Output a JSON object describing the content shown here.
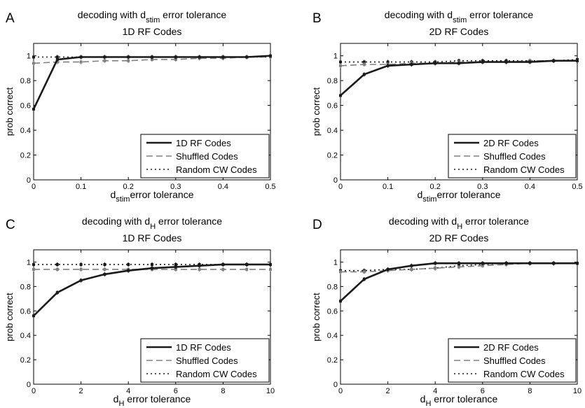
{
  "figure": {
    "legend_labels": [
      "Shuffled Codes",
      "Random CW Codes"
    ]
  },
  "chart_data": [
    {
      "type": "line",
      "panel_letter": "A",
      "title_prefix": "decoding with d",
      "title_sub": "stim",
      "title_suffix": " error tolerance",
      "subtitle": "1D RF Codes",
      "ylabel": "prob correct",
      "xlabel_prefix": "d",
      "xlabel_sub": "stim",
      "xlabel_suffix": "error tolerance",
      "xlim": [
        0,
        0.5
      ],
      "ylim": [
        0,
        1.1
      ],
      "xticks": [
        "0",
        "0.1",
        "0.2",
        "0.3",
        "0.4",
        "0.5"
      ],
      "xtick_values": [
        0,
        0.1,
        0.2,
        0.3,
        0.4,
        0.5
      ],
      "yticks": [
        "0",
        "0.2",
        "0.4",
        "0.6",
        "0.8",
        "1"
      ],
      "ytick_values": [
        0,
        0.2,
        0.4,
        0.6,
        0.8,
        1
      ],
      "legend_placement": "bottom-right",
      "x": [
        0,
        0.05,
        0.1,
        0.15,
        0.2,
        0.25,
        0.3,
        0.35,
        0.4,
        0.45,
        0.5
      ],
      "series": [
        {
          "name": "1D RF Codes",
          "style": "solid",
          "color": "#1a1a1a",
          "values": [
            0.57,
            0.97,
            0.99,
            0.99,
            0.99,
            0.99,
            0.99,
            0.99,
            0.99,
            0.99,
            1.0
          ]
        },
        {
          "name": "Shuffled Codes",
          "style": "dashed",
          "color": "#808080",
          "values": [
            0.94,
            0.95,
            0.95,
            0.96,
            0.96,
            0.97,
            0.97,
            0.98,
            0.98,
            0.99,
            0.99
          ]
        },
        {
          "name": "Random CW Codes",
          "style": "dotted",
          "color": "#1a1a1a",
          "values": [
            0.99,
            0.99,
            0.99,
            0.99,
            0.99,
            0.99,
            0.99,
            0.99,
            0.99,
            0.99,
            0.99
          ]
        }
      ]
    },
    {
      "type": "line",
      "panel_letter": "B",
      "title_prefix": "decoding with d",
      "title_sub": "stim",
      "title_suffix": " error tolerance",
      "subtitle": "2D RF Codes",
      "ylabel": "prob correct",
      "xlabel_prefix": "d",
      "xlabel_sub": "stim",
      "xlabel_suffix": "error tolerance",
      "xlim": [
        0,
        0.5
      ],
      "ylim": [
        0,
        1.1
      ],
      "xticks": [
        "0",
        "0.1",
        "0.2",
        "0.3",
        "0.4",
        "0.5"
      ],
      "xtick_values": [
        0,
        0.1,
        0.2,
        0.3,
        0.4,
        0.5
      ],
      "yticks": [
        "0",
        "0.2",
        "0.4",
        "0.6",
        "0.8",
        "1"
      ],
      "ytick_values": [
        0,
        0.2,
        0.4,
        0.6,
        0.8,
        1
      ],
      "legend_placement": "bottom-right",
      "x": [
        0,
        0.05,
        0.1,
        0.15,
        0.2,
        0.25,
        0.3,
        0.35,
        0.4,
        0.45,
        0.5
      ],
      "series": [
        {
          "name": "2D RF Codes",
          "style": "solid",
          "color": "#1a1a1a",
          "values": [
            0.68,
            0.85,
            0.92,
            0.93,
            0.94,
            0.94,
            0.95,
            0.95,
            0.95,
            0.96,
            0.96
          ]
        },
        {
          "name": "Shuffled Codes",
          "style": "dashed",
          "color": "#808080",
          "values": [
            0.92,
            0.93,
            0.93,
            0.94,
            0.94,
            0.95,
            0.95,
            0.95,
            0.96,
            0.96,
            0.96
          ]
        },
        {
          "name": "Random CW Codes",
          "style": "dotted",
          "color": "#1a1a1a",
          "values": [
            0.95,
            0.95,
            0.95,
            0.95,
            0.95,
            0.96,
            0.96,
            0.96,
            0.96,
            0.96,
            0.97
          ]
        }
      ]
    },
    {
      "type": "line",
      "panel_letter": "C",
      "title_prefix": "decoding with d",
      "title_sub": "H",
      "title_suffix": " error tolerance",
      "subtitle": "1D RF Codes",
      "ylabel": "prob correct",
      "xlabel_prefix": "d",
      "xlabel_sub": "H",
      "xlabel_suffix": " error tolerance",
      "xlim": [
        0,
        10
      ],
      "ylim": [
        0,
        1.1
      ],
      "xticks": [
        "0",
        "2",
        "4",
        "6",
        "8",
        "10"
      ],
      "xtick_values": [
        0,
        2,
        4,
        6,
        8,
        10
      ],
      "yticks": [
        "0",
        "0.2",
        "0.4",
        "0.6",
        "0.8",
        "1"
      ],
      "ytick_values": [
        0,
        0.2,
        0.4,
        0.6,
        0.8,
        1
      ],
      "legend_placement": "bottom-right",
      "x": [
        0,
        1,
        2,
        3,
        4,
        5,
        6,
        7,
        8,
        9,
        10
      ],
      "series": [
        {
          "name": "1D RF Codes",
          "style": "solid",
          "color": "#1a1a1a",
          "values": [
            0.56,
            0.75,
            0.85,
            0.9,
            0.93,
            0.95,
            0.96,
            0.97,
            0.98,
            0.98,
            0.98
          ]
        },
        {
          "name": "Shuffled Codes",
          "style": "dashed",
          "color": "#808080",
          "values": [
            0.94,
            0.94,
            0.94,
            0.94,
            0.94,
            0.94,
            0.94,
            0.94,
            0.94,
            0.94,
            0.94
          ]
        },
        {
          "name": "Random CW Codes",
          "style": "dotted",
          "color": "#1a1a1a",
          "values": [
            0.98,
            0.98,
            0.98,
            0.98,
            0.98,
            0.98,
            0.98,
            0.98,
            0.98,
            0.98,
            0.98
          ]
        }
      ]
    },
    {
      "type": "line",
      "panel_letter": "D",
      "title_prefix": "decoding with d",
      "title_sub": "H",
      "title_suffix": " error tolerance",
      "subtitle": "2D RF Codes",
      "ylabel": "prob correct",
      "xlabel_prefix": "d",
      "xlabel_sub": "H",
      "xlabel_suffix": " error tolerance",
      "xlim": [
        0,
        10
      ],
      "ylim": [
        0,
        1.1
      ],
      "xticks": [
        "0",
        "2",
        "4",
        "6",
        "8",
        "10"
      ],
      "xtick_values": [
        0,
        2,
        4,
        6,
        8,
        10
      ],
      "yticks": [
        "0",
        "0.2",
        "0.4",
        "0.6",
        "0.8",
        "1"
      ],
      "ytick_values": [
        0,
        0.2,
        0.4,
        0.6,
        0.8,
        1
      ],
      "legend_placement": "bottom-right",
      "x": [
        0,
        1,
        2,
        3,
        4,
        5,
        6,
        7,
        8,
        9,
        10
      ],
      "series": [
        {
          "name": "2D RF Codes",
          "style": "solid",
          "color": "#1a1a1a",
          "values": [
            0.68,
            0.86,
            0.94,
            0.97,
            0.99,
            0.99,
            0.99,
            0.99,
            0.99,
            0.99,
            0.99
          ]
        },
        {
          "name": "Shuffled Codes",
          "style": "dashed",
          "color": "#808080",
          "values": [
            0.92,
            0.92,
            0.93,
            0.94,
            0.95,
            0.96,
            0.97,
            0.98,
            0.99,
            0.99,
            0.99
          ]
        },
        {
          "name": "Random CW Codes",
          "style": "dotted",
          "color": "#1a1a1a",
          "values": [
            0.93,
            0.93,
            0.94,
            0.94,
            0.95,
            0.97,
            0.98,
            0.99,
            0.99,
            0.99,
            0.99
          ]
        }
      ]
    }
  ]
}
